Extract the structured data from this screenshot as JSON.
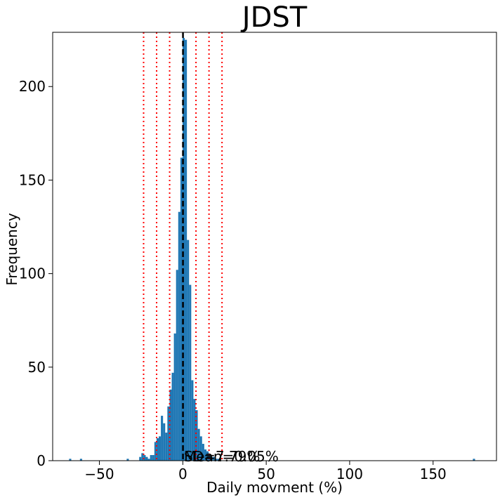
{
  "chart_data": {
    "type": "histogram",
    "title": "JDST",
    "xlabel": "Daily movment (%)",
    "ylabel": "Frequency",
    "xlim": [
      -78,
      188
    ],
    "ylim": [
      0,
      229
    ],
    "xticks": [
      -50,
      0,
      50,
      100,
      150
    ],
    "yticks": [
      0,
      50,
      100,
      150,
      200
    ],
    "xtick_labels": [
      "−50",
      "0",
      "50",
      "100",
      "150"
    ],
    "ytick_labels": [
      "0",
      "50",
      "100",
      "150",
      "200"
    ],
    "bar_color": "#1f77b4",
    "bins": [
      {
        "x": -67.5,
        "count": 1
      },
      {
        "x": -61.0,
        "count": 1
      },
      {
        "x": -33.0,
        "count": 1
      },
      {
        "x": -25.5,
        "count": 2
      },
      {
        "x": -24.2,
        "count": 4
      },
      {
        "x": -22.9,
        "count": 3
      },
      {
        "x": -21.6,
        "count": 2
      },
      {
        "x": -20.3,
        "count": 1
      },
      {
        "x": -19.0,
        "count": 3
      },
      {
        "x": -17.7,
        "count": 3
      },
      {
        "x": -16.4,
        "count": 10
      },
      {
        "x": -15.1,
        "count": 12
      },
      {
        "x": -13.8,
        "count": 13
      },
      {
        "x": -12.5,
        "count": 24
      },
      {
        "x": -11.2,
        "count": 20
      },
      {
        "x": -9.9,
        "count": 15
      },
      {
        "x": -8.6,
        "count": 29
      },
      {
        "x": -7.3,
        "count": 38
      },
      {
        "x": -6.0,
        "count": 47
      },
      {
        "x": -4.7,
        "count": 68
      },
      {
        "x": -3.4,
        "count": 102
      },
      {
        "x": -2.1,
        "count": 133
      },
      {
        "x": -0.8,
        "count": 162
      },
      {
        "x": 0.5,
        "count": 226
      },
      {
        "x": 1.8,
        "count": 225
      },
      {
        "x": 3.1,
        "count": 118
      },
      {
        "x": 4.4,
        "count": 94
      },
      {
        "x": 5.7,
        "count": 43
      },
      {
        "x": 7.0,
        "count": 33
      },
      {
        "x": 8.3,
        "count": 27
      },
      {
        "x": 9.6,
        "count": 17
      },
      {
        "x": 10.9,
        "count": 13
      },
      {
        "x": 12.2,
        "count": 9
      },
      {
        "x": 13.5,
        "count": 6
      },
      {
        "x": 14.8,
        "count": 5
      },
      {
        "x": 16.1,
        "count": 3
      },
      {
        "x": 17.4,
        "count": 2
      },
      {
        "x": 18.7,
        "count": 2
      },
      {
        "x": 20.0,
        "count": 1
      },
      {
        "x": 21.3,
        "count": 1
      },
      {
        "x": 174.5,
        "count": 1
      }
    ],
    "bin_width": 1.3,
    "mean_line": {
      "x": 0.1,
      "style": "dashed",
      "color": "#000000"
    },
    "std_lines": {
      "x": [
        -23.5,
        -15.7,
        -7.9,
        7.9,
        15.7,
        23.5
      ],
      "style": "dotted",
      "color": "#ff0000"
    },
    "annotations": [
      "Mean=0.05%",
      "SD=7.79%"
    ]
  }
}
